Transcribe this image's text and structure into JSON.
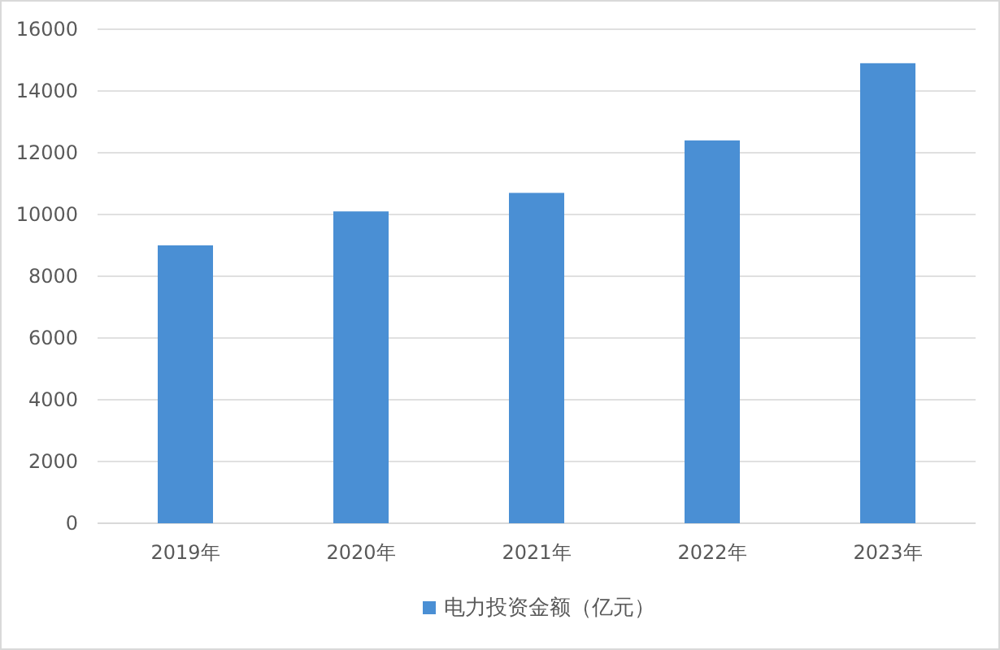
{
  "chart_data": {
    "type": "bar",
    "categories": [
      "2019年",
      "2020年",
      "2021年",
      "2022年",
      "2023年"
    ],
    "series": [
      {
        "name": "电力投资金额（亿元）",
        "color": "#4a8fd4",
        "values": [
          9000,
          10100,
          10700,
          12400,
          14900
        ]
      }
    ],
    "ylim": [
      0,
      16000
    ],
    "yticks": [
      0,
      2000,
      4000,
      6000,
      8000,
      10000,
      12000,
      14000,
      16000
    ],
    "grid": "y",
    "legend": "bottom"
  }
}
